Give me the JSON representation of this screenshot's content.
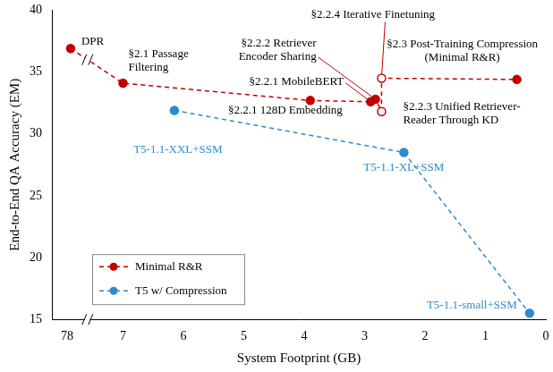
{
  "chart_data": {
    "type": "line",
    "x_label": "System Footprint (GB)",
    "y_label": "End-to-End QA Accuracy (EM)",
    "xlim": [
      78.25,
      0
    ],
    "xticks": [
      78,
      7,
      6,
      5,
      4,
      3,
      2,
      1,
      0
    ],
    "ylim": [
      15,
      40
    ],
    "yticks": [
      15,
      20,
      25,
      30,
      35,
      40
    ],
    "grid": false,
    "legend": "lower left",
    "series": [
      {
        "name": "Minimal R&R",
        "color": "#c00000",
        "line_style": "dashed",
        "marker": [
          "circle",
          "circle",
          "circle",
          "circle",
          "circle",
          "circle-open",
          "circle-open",
          "circle"
        ],
        "x": [
          77.94,
          7.0,
          3.9,
          2.9,
          2.82,
          2.72,
          2.72,
          0.48
        ],
        "values": [
          36.9,
          34.1,
          32.7,
          32.6,
          32.8,
          31.8,
          34.5,
          34.4
        ],
        "labels": [
          "DPR",
          "§2.1 Passage\nFiltering",
          "§2.2.1 128D Embedding",
          "§2.2.1 MobileBERT",
          "§2.2.2 Retriever\nEncoder Sharing",
          "§2.2.3 Unified Retriever-\nReader Through KD",
          "§2.2.4 Iterative Finetuning",
          "§2.3 Post-Training Compression\n(Minimal R&R)"
        ]
      },
      {
        "name": "T5 w/ Compression",
        "color": "#2e8bcc",
        "line_style": "dashed",
        "marker": "circle",
        "x": [
          6.15,
          2.35,
          0.27
        ],
        "values": [
          31.9,
          28.5,
          15.5
        ],
        "labels": [
          "T5-1.1-XXL+SSM",
          "T5-1.1-XL+SSM",
          "T5-1.1-small+SSM"
        ]
      }
    ]
  }
}
